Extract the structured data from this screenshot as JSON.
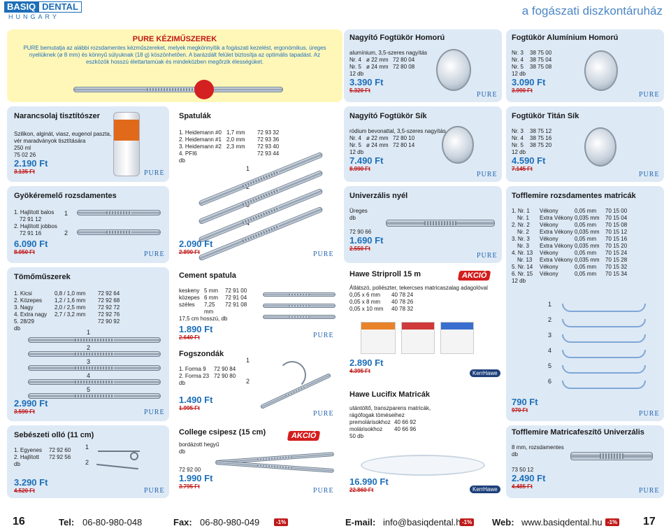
{
  "header": {
    "logo_a": "BASIQ",
    "logo_b": "DENTAL",
    "logo_sub": "HUNGARY",
    "tagline": "a fogászati diszkontáruház"
  },
  "brand": "PURE",
  "pure_promo": {
    "title": "PURE KÉZIMŰSZEREK",
    "text": "PURE bemutatja az alábbi rozsdamentes kézműszereket, melyek megkönnyítik a fogászati kezelést, ergonómikus, üreges nyeliüknek (ø 8 mm) és könnyű súlyuknak (18 g) köszönhetően. A barázdált felület biztosítja az optimális tapadást. Az eszközök hosszú élettartamúak és mindeközben megőrzik élességüket."
  },
  "narancs": {
    "title": "Narancsolaj tisztítószer",
    "l1": "Szilikon, alginát, viasz, eugenol paszta,",
    "l2": "vér maradványok tisztítására",
    "l3": "250 ml",
    "code": "75 02 26",
    "price": "2.190 Ft",
    "old": "3.135 Ft"
  },
  "gyoker": {
    "title": "Gyökéremelő rozsdamentes",
    "i1": "1. Hajlított balos",
    "c1": "72 91 12",
    "i2": "2. Hajlított jobbos",
    "c2": "72 91 16",
    "n1": "1",
    "n2": "2",
    "price": "6.090 Ft",
    "old": "8.050 Ft"
  },
  "tomo": {
    "title": "Tömőműszerek",
    "rows": [
      [
        "1. Kicsi",
        "0,8 / 1,0 mm",
        "72 92 64"
      ],
      [
        "2. Közepes",
        "1,2 / 1,6 mm",
        "72 92 68"
      ],
      [
        "3. Nagy",
        "2,0 / 2,5 mm",
        "72 92 72"
      ],
      [
        "4. Extra nagy",
        "2,7 / 3,2 mm",
        "72 92 76"
      ],
      [
        "5. 28/29",
        "",
        "72 90 92"
      ]
    ],
    "unit": "db",
    "nums": [
      "1",
      "2",
      "3",
      "4",
      "5"
    ],
    "price": "2.990 Ft",
    "old": "3.590 Ft"
  },
  "ollo": {
    "title": "Sebészeti olló (11 cm)",
    "r1": [
      "1. Egyenes",
      "72 92 60"
    ],
    "r2": [
      "2. Hajlított",
      "72 92 56"
    ],
    "unit": "db",
    "n1": "1",
    "n2": "2",
    "price": "3.290 Ft",
    "old": "4.520 Ft"
  },
  "spatula": {
    "title": "Spatulák",
    "rows": [
      [
        "1. Heidemann #0",
        "1,7 mm",
        "72 93 32"
      ],
      [
        "2. Heidemann #1",
        "2,0 mm",
        "72 93 36"
      ],
      [
        "3. Heidemann #2",
        "2,3 mm",
        "72 93 40"
      ],
      [
        "4. PFI6",
        "",
        "72 93 44"
      ]
    ],
    "unit": "db",
    "nums": [
      "1",
      "2",
      "3",
      "4"
    ],
    "price": "2.090 Ft",
    "old": "2.890 Ft"
  },
  "cement": {
    "title": "Cement spatula",
    "rows": [
      [
        "keskeny",
        "5 mm",
        "72 91 00"
      ],
      [
        "közepes",
        "6 mm",
        "72 91 04"
      ],
      [
        "széles",
        "7,25 mm",
        "72 91 08"
      ]
    ],
    "note": "17,5 cm hosszú, db",
    "price": "1.890 Ft",
    "old": "2.640 Ft"
  },
  "fogszonda": {
    "title": "Fogszondák",
    "r1": [
      "1. Forma 9",
      "72 90 84"
    ],
    "r2": [
      "2. Forma 23",
      "72 90 80"
    ],
    "unit": "db",
    "n1": "1",
    "n2": "2",
    "price": "1.490 Ft",
    "old": "1.995 Ft"
  },
  "csipesz": {
    "title": "College csipesz (15 cm)",
    "l1": "bordázott hegyű",
    "unit": "db",
    "code": "72 92 00",
    "price": "1.990 Ft",
    "old": "3.795 Ft",
    "akcio": "AKCIÓ"
  },
  "nagy_hom": {
    "title": "Nagyító Fogtükör Homorú",
    "l1": "alumínium, 3,5-szeres nagyítás",
    "r1": [
      "Nr. 4",
      "ø 22 mm",
      "72 80 04"
    ],
    "r2": [
      "Nr. 5",
      "ø 24 mm",
      "72 80 08"
    ],
    "unit": "12 db",
    "price": "3.390 Ft",
    "old": "5.320 Ft"
  },
  "alu_hom": {
    "title": "Fogtükör Alumínium Homorú",
    "rows": [
      [
        "Nr. 3",
        "38 75 00"
      ],
      [
        "Nr. 4",
        "38 75 04"
      ],
      [
        "Nr. 5",
        "38 75 08"
      ]
    ],
    "unit": "12 db",
    "price": "3.090 Ft",
    "old": "3.990 Ft"
  },
  "nagy_sik": {
    "title": "Nagyító Fogtükör Sík",
    "l1": "ródium bevonattal, 3,5-szeres nagyítás",
    "r1": [
      "Nr. 4",
      "ø 22 mm",
      "72 80 10"
    ],
    "r2": [
      "Nr. 5",
      "ø 24 mm",
      "72 80 14"
    ],
    "unit": "12 db",
    "price": "7.490 Ft",
    "old": "8.990 Ft"
  },
  "titan": {
    "title": "Fogtükör Titán Sík",
    "rows": [
      [
        "Nr. 3",
        "38 75 12"
      ],
      [
        "Nr. 4",
        "38 75 16"
      ],
      [
        "Nr. 5",
        "38 75 20"
      ]
    ],
    "unit": "12 db",
    "price": "4.590 Ft",
    "old": "7.145 Ft"
  },
  "nyel": {
    "title": "Univerzális nyél",
    "l1": "Üreges",
    "unit": "db",
    "code": "72 90 66",
    "price": "1.690 Ft",
    "old": "2.550 Ft"
  },
  "striproll": {
    "title": "Hawe Striproll 15 m",
    "akcio": "AKCIÓ",
    "l1": "Átlátszó, poliészter, tekercses matricaszalag adagolóval",
    "rows": [
      [
        "0,05 x 6 mm",
        "40 78 24"
      ],
      [
        "0,05 x 8 mm",
        "40 78 26"
      ],
      [
        "0,05 x 10 mm",
        "40 78 32"
      ]
    ],
    "price": "2.890 Ft",
    "old": "4.395 Ft",
    "maker": "KerrHawe"
  },
  "lucifix": {
    "title": "Hawe Lucifix Matricák",
    "l1": "utántöltő, transzparens matricák,",
    "l2": "rágófogak töméseihez",
    "rows": [
      [
        "premolárisokhoz",
        "40 66 92"
      ],
      [
        "molárisokhoz",
        "40 66 96"
      ]
    ],
    "unit": "50 db",
    "price": "16.990 Ft",
    "old": "22.860 Ft",
    "maker": "KerrHawe"
  },
  "tofflemire": {
    "title": "Tofflemire rozsdamentes matricák",
    "rows": [
      [
        "1. Nr. 1",
        "Vékony",
        "0,05 mm",
        "70 15 00"
      ],
      [
        "Nr. 1",
        "Extra Vékony",
        "0,035 mm",
        "70 15 04"
      ],
      [
        "2. Nr. 2",
        "Vékony",
        "0,05 mm",
        "70 15 08"
      ],
      [
        "Nr. 2",
        "Extra Vékony",
        "0,035 mm",
        "70 15 12"
      ],
      [
        "3. Nr. 3",
        "Vékony",
        "0,05 mm",
        "70 15 16"
      ],
      [
        "Nr. 3",
        "Extra Vékony",
        "0,035 mm",
        "70 15 20"
      ],
      [
        "4. Nr. 13",
        "Vékony",
        "0,05 mm",
        "70 15 24"
      ],
      [
        "Nr. 13",
        "Extra Vékony",
        "0,035 mm",
        "70 15 28"
      ],
      [
        "5. Nr. 14",
        "Vékony",
        "0,05 mm",
        "70 15 32"
      ],
      [
        "6. Nr. 15",
        "Vékony",
        "0,05 mm",
        "70 15 34"
      ]
    ],
    "unit": "12 db",
    "nums": [
      "1",
      "2",
      "3",
      "4",
      "5",
      "6"
    ],
    "price": "790 Ft",
    "old": "970 Ft"
  },
  "matrfeszito": {
    "title": "Tofflemire Matricafeszítő Univerzális",
    "l1": "8 mm, rozsdamentes",
    "unit": "db",
    "code": "73 50 12",
    "price": "2.490 Ft",
    "old": "4.485 Ft"
  },
  "footer": {
    "page_left": "16",
    "tel_label": "Tel:",
    "tel": "06-80-980-048",
    "fax_label": "Fax:",
    "fax": "06-80-980-049",
    "badge": "-1%",
    "email_label": "E-mail:",
    "email": "info@basiqdental.hu",
    "web_label": "Web:",
    "web": "www.basiqdental.hu",
    "page_right": "17"
  },
  "colors": {
    "accent": "#1d6fb8",
    "price": "#1d6fb8",
    "old": "#c01818",
    "panel": "#dde9f5"
  }
}
